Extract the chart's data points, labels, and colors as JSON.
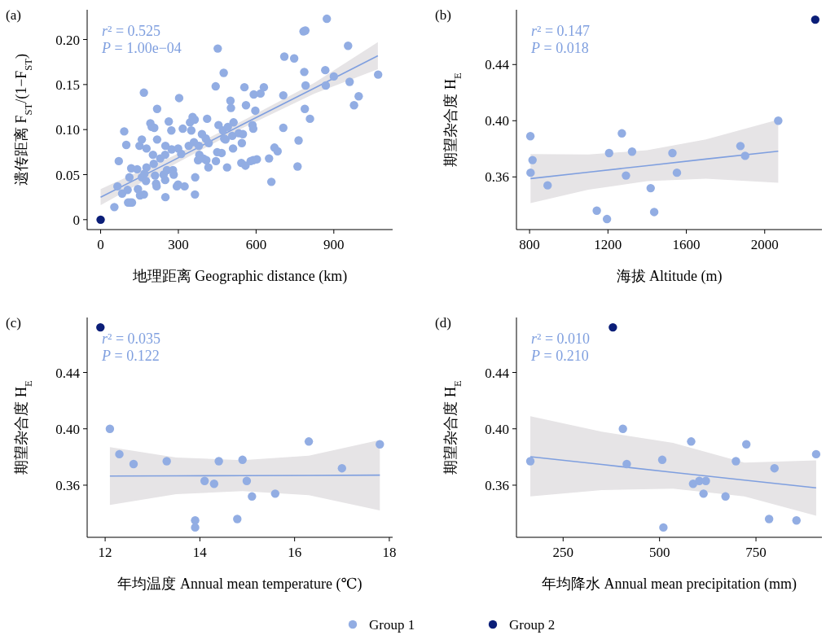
{
  "chart_data": [
    {
      "type": "scatter",
      "title": "(a)",
      "xlabel": "地理距离 Geographic distance (km)",
      "ylabel": "遗传距离 F$_{ST}$/(1−F$_{ST}$)",
      "xlim": [
        -52,
        1127
      ],
      "ylim": [
        -0.011,
        0.233
      ],
      "xticks": [
        0,
        300,
        600,
        900
      ],
      "yticks": [
        0,
        0.05,
        {
          "value": 0.1,
          "label": "0.10"
        },
        0.15,
        {
          "value": 0.2,
          "label": "0.20"
        }
      ],
      "grid": false,
      "legend": "bottom",
      "annotations": [
        "r² = 0.525",
        "P = 1.00e−04"
      ],
      "series": [
        {
          "name": "Group 1",
          "color": "#92ade3",
          "x": [
            53,
            65,
            70,
            83,
            91,
            99,
            104,
            106,
            114,
            121,
            111,
            118,
            141,
            144,
            150,
            152,
            159,
            159,
            167,
            167,
            169,
            175,
            177,
            177,
            192,
            197,
            207,
            202,
            205,
            210,
            214,
            216,
            218,
            218,
            230,
            243,
            249,
            250,
            249,
            250,
            256,
            263,
            273,
            274,
            279,
            282,
            294,
            299,
            299,
            303,
            311,
            317,
            324,
            340,
            345,
            350,
            355,
            360,
            363,
            365,
            364,
            376,
            379,
            381,
            391,
            396,
            406,
            408,
            411,
            416,
            417,
            444,
            445,
            450,
            452,
            455,
            467,
            472,
            475,
            477,
            482,
            488,
            491,
            501,
            503,
            508,
            511,
            513,
            533,
            543,
            545,
            549,
            555,
            559,
            561,
            579,
            586,
            589,
            591,
            597,
            589,
            603,
            617,
            630,
            650,
            659,
            671,
            683,
            705,
            705,
            709,
            747,
            760,
            764,
            783,
            790,
            786,
            791,
            788,
            808,
            867,
            869,
            873,
            900,
            955,
            961,
            978,
            996,
            1071
          ],
          "values": [
            0.014,
            0.037,
            0.065,
            0.029,
            0.098,
            0.083,
            0.033,
            0.019,
            0.019,
            0.019,
            0.047,
            0.057,
            0.056,
            0.034,
            0.082,
            0.027,
            0.089,
            0.047,
            0.028,
            0.141,
            0.051,
            0.043,
            0.079,
            0.058,
            0.107,
            0.103,
            0.102,
            0.072,
            0.062,
            0.049,
            0.04,
            0.037,
            0.123,
            0.089,
            0.068,
            0.05,
            0.072,
            0.082,
            0.044,
            0.025,
            0.055,
            0.109,
            0.099,
            0.078,
            0.055,
            0.05,
            0.037,
            0.039,
            0.079,
            0.135,
            0.073,
            0.101,
            0.037,
            0.082,
            0.108,
            0.099,
            0.114,
            0.086,
            0.111,
            0.047,
            0.028,
            0.066,
            0.082,
            0.072,
            0.095,
            0.068,
            0.09,
            0.066,
            0.112,
            0.058,
            0.085,
            0.148,
            0.065,
            0.075,
            0.19,
            0.105,
            0.074,
            0.099,
            0.163,
            0.09,
            0.089,
            0.058,
            0.103,
            0.132,
            0.124,
            0.093,
            0.079,
            0.108,
            0.096,
            0.063,
            0.085,
            0.095,
            0.147,
            0.06,
            0.127,
            0.065,
            0.105,
            0.101,
            0.139,
            0.121,
            0.066,
            0.067,
            0.14,
            0.147,
            0.068,
            0.042,
            0.08,
            0.076,
            0.102,
            0.138,
            0.181,
            0.179,
            0.059,
            0.088,
            0.209,
            0.21,
            0.164,
            0.149,
            0.123,
            0.112,
            0.166,
            0.149,
            0.223,
            0.159,
            0.193,
            0.153,
            0.127,
            0.137,
            0.161
          ]
        },
        {
          "name": "Group 2",
          "color": "#0b1e78",
          "x": [
            0
          ],
          "values": [
            0
          ]
        },
        {
          "type": "line",
          "color": "#7f9fdf",
          "x": [
            0,
            275,
            550,
            825,
            1070
          ],
          "values": [
            0.025,
            0.065,
            0.106,
            0.146,
            0.182
          ],
          "lower": [
            0.016,
            0.06,
            0.102,
            0.14,
            0.167
          ],
          "upper": [
            0.034,
            0.07,
            0.11,
            0.152,
            0.197
          ]
        }
      ]
    },
    {
      "type": "scatter",
      "title": "(b)",
      "xlabel": "海拔 Altitude (m)",
      "ylabel": "期望杂合度 H$_{E}$",
      "xlim": [
        733,
        2292
      ],
      "ylim": [
        0.3225,
        0.479
      ],
      "xticks": [
        800,
        1200,
        1600,
        2000
      ],
      "yticks": [
        0.36,
        {
          "value": 0.4,
          "label": "0.40"
        },
        0.44
      ],
      "grid": false,
      "legend": "bottom",
      "annotations": [
        "r² = 0.147",
        "P = 0.018"
      ],
      "series": [
        {
          "name": "Group 1",
          "color": "#92ade3",
          "x": [
            804,
            815,
            805,
            892,
            1143,
            1195,
            1206,
            1271,
            1292,
            1323,
            1418,
            1436,
            1529,
            1552,
            1876,
            1900,
            2069
          ],
          "values": [
            0.389,
            0.372,
            0.363,
            0.354,
            0.336,
            0.33,
            0.377,
            0.391,
            0.361,
            0.378,
            0.352,
            0.335,
            0.377,
            0.363,
            0.382,
            0.375,
            0.4
          ]
        },
        {
          "name": "Group 2",
          "color": "#0b1e78",
          "x": [
            2258
          ],
          "values": [
            0.472
          ]
        },
        {
          "type": "line",
          "color": "#7f9fdf",
          "x": [
            805,
            1100,
            1400,
            1700,
            2069
          ],
          "values": [
            0.3588,
            0.3634,
            0.368,
            0.3727,
            0.3783
          ],
          "lower": [
            0.3413,
            0.3509,
            0.357,
            0.3587,
            0.3558
          ],
          "upper": [
            0.3763,
            0.3759,
            0.379,
            0.3867,
            0.4008
          ]
        }
      ]
    },
    {
      "type": "scatter",
      "title": "(c)",
      "xlabel": "年均温度 Annual mean temperature (℃)",
      "ylabel": "期望杂合度 H$_{E}$",
      "xlim": [
        11.62,
        18.07
      ],
      "ylim": [
        0.323,
        0.479
      ],
      "xticks": [
        12,
        14,
        16,
        18
      ],
      "yticks": [
        0.36,
        {
          "value": 0.4,
          "label": "0.40"
        },
        0.44
      ],
      "grid": false,
      "legend": "bottom",
      "annotations": [
        "r² = 0.035",
        "P = 0.122"
      ],
      "series": [
        {
          "name": "Group 1",
          "color": "#92ade3",
          "x": [
            12.1,
            12.3,
            12.6,
            13.3,
            13.9,
            13.9,
            14.1,
            14.3,
            14.4,
            14.79,
            14.9,
            14.99,
            15.1,
            15.59,
            16.3,
            17.0,
            17.8
          ],
          "values": [
            0.4,
            0.382,
            0.375,
            0.377,
            0.335,
            0.33,
            0.363,
            0.361,
            0.377,
            0.336,
            0.378,
            0.363,
            0.352,
            0.354,
            0.391,
            0.372,
            0.389
          ]
        },
        {
          "name": "Group 2",
          "color": "#0b1e78",
          "x": [
            11.9
          ],
          "values": [
            0.472
          ]
        },
        {
          "type": "line",
          "color": "#7f9fdf",
          "x": [
            12.1,
            13.5,
            14.9,
            16.3,
            17.8
          ],
          "values": [
            0.3665,
            0.3666,
            0.3668,
            0.3669,
            0.3671
          ],
          "lower": [
            0.346,
            0.3536,
            0.3558,
            0.3529,
            0.3421
          ],
          "upper": [
            0.387,
            0.3796,
            0.3778,
            0.3809,
            0.3921
          ]
        }
      ]
    },
    {
      "type": "scatter",
      "title": "(d)",
      "xlabel": "年均降水 Annual mean precipitation (mm)",
      "ylabel": "期望杂合度 H$_{E}$",
      "xlim": [
        129,
        921
      ],
      "ylim": [
        0.323,
        0.479
      ],
      "xticks": [
        250,
        500,
        750
      ],
      "yticks": [
        0.36,
        {
          "value": 0.4,
          "label": "0.40"
        },
        0.44
      ],
      "grid": false,
      "legend": "bottom",
      "annotations": [
        "r² = 0.010",
        "P = 0.210"
      ],
      "series": [
        {
          "name": "Group 1",
          "color": "#92ade3",
          "x": [
            165,
            405,
            415,
            507,
            510,
            582,
            587,
            603,
            620,
            614,
            671,
            698,
            725,
            798,
            784,
            855,
            906
          ],
          "values": [
            0.377,
            0.4,
            0.375,
            0.378,
            0.33,
            0.391,
            0.361,
            0.363,
            0.363,
            0.354,
            0.352,
            0.377,
            0.389,
            0.372,
            0.336,
            0.335,
            0.382
          ]
        },
        {
          "name": "Group 2",
          "color": "#0b1e78",
          "x": [
            379
          ],
          "values": [
            0.472
          ]
        },
        {
          "type": "line",
          "color": "#7f9fdf",
          "x": [
            165,
            350,
            535,
            720,
            906
          ],
          "values": [
            0.3802,
            0.3747,
            0.3691,
            0.3636,
            0.3581
          ],
          "lower": [
            0.352,
            0.3565,
            0.3575,
            0.352,
            0.3383
          ],
          "upper": [
            0.409,
            0.398,
            0.39,
            0.376,
            0.3776
          ]
        }
      ]
    }
  ]
}
